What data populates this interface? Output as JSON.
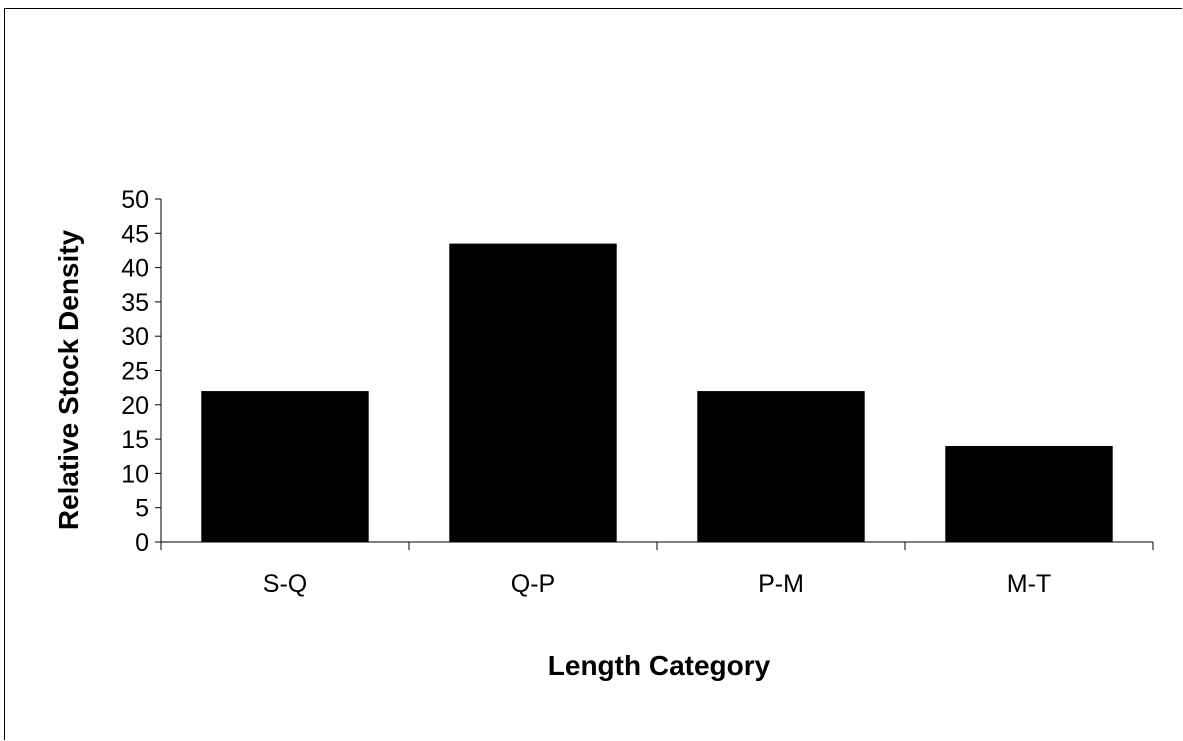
{
  "chart_data": {
    "type": "bar",
    "title": "",
    "xlabel": "Length Category",
    "ylabel": "Relative Stock Density",
    "categories": [
      "S-Q",
      "Q-P",
      "P-M",
      "M-T"
    ],
    "values": [
      22,
      43.5,
      22,
      14
    ],
    "ylim": [
      0,
      50
    ],
    "yticks": [
      0,
      5,
      10,
      15,
      20,
      25,
      30,
      35,
      40,
      45,
      50
    ],
    "grid": false,
    "legend": "none",
    "bar_color": "#000000"
  }
}
